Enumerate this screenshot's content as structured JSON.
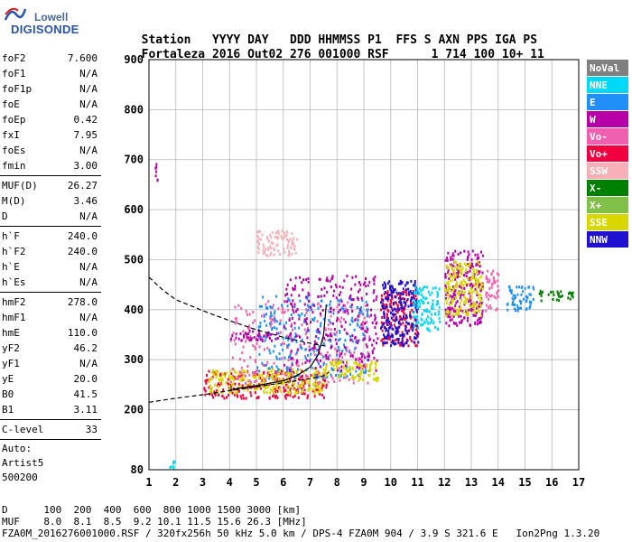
{
  "logo": {
    "line1": "Lowell",
    "line2": "DIGISONDE"
  },
  "header": {
    "columns": [
      "Station",
      "YYYY",
      "DAY",
      "DDD",
      "HHMMSS",
      "P1",
      "FFS",
      "S",
      "AXN",
      "PPS",
      "IGA",
      "PS"
    ],
    "values": [
      "Fortaleza",
      "2016",
      "Out02",
      "276",
      "001000",
      "RSF",
      "",
      "1",
      "714",
      "100",
      "10+",
      "11"
    ]
  },
  "params": [
    {
      "label": "foF2",
      "value": "7.600"
    },
    {
      "label": "foF1",
      "value": "N/A"
    },
    {
      "label": "foF1p",
      "value": "N/A"
    },
    {
      "label": "foE",
      "value": "N/A"
    },
    {
      "label": "foEp",
      "value": "0.42"
    },
    {
      "label": "fxI",
      "value": "7.95"
    },
    {
      "label": "foEs",
      "value": "N/A"
    },
    {
      "label": "fmin",
      "value": "3.00"
    },
    {
      "label": "MUF(D)",
      "value": "26.27"
    },
    {
      "label": "M(D)",
      "value": "3.46"
    },
    {
      "label": "D",
      "value": "N/A"
    },
    {
      "label": "h`F",
      "value": "240.0"
    },
    {
      "label": "h`F2",
      "value": "240.0"
    },
    {
      "label": "h`E",
      "value": "N/A"
    },
    {
      "label": "h`Es",
      "value": "N/A"
    },
    {
      "label": "hmF2",
      "value": "278.0"
    },
    {
      "label": "hmF1",
      "value": "N/A"
    },
    {
      "label": "hmE",
      "value": "110.0"
    },
    {
      "label": "yF2",
      "value": "46.2"
    },
    {
      "label": "yF1",
      "value": "N/A"
    },
    {
      "label": "yE",
      "value": "20.0"
    },
    {
      "label": "B0",
      "value": "41.5"
    },
    {
      "label": "B1",
      "value": "3.11"
    },
    {
      "label": "C-level",
      "value": "33"
    }
  ],
  "auto": {
    "line1": "Auto:",
    "line2": "Artist5",
    "line3": "500200"
  },
  "legend": [
    {
      "label": "NoVal",
      "color": "#808080"
    },
    {
      "label": "NNE",
      "color": "#00d8f8"
    },
    {
      "label": "E",
      "color": "#2090f8"
    },
    {
      "label": "W",
      "color": "#b800a8"
    },
    {
      "label": "Vo-",
      "color": "#f060b0"
    },
    {
      "label": "Vo+",
      "color": "#f00040"
    },
    {
      "label": "SSW",
      "color": "#f8b0b8"
    },
    {
      "label": "X-",
      "color": "#008000"
    },
    {
      "label": "X+",
      "color": "#80c048"
    },
    {
      "label": "SSE",
      "color": "#d8d800"
    },
    {
      "label": "NNW",
      "color": "#2010d0"
    }
  ],
  "chart_data": {
    "type": "scatter",
    "xlim": [
      1,
      17
    ],
    "ylim": [
      80,
      900
    ],
    "x_ticks": [
      1,
      2,
      3,
      4,
      5,
      6,
      7,
      8,
      9,
      10,
      11,
      12,
      13,
      14,
      15,
      16,
      17
    ],
    "y_ticks": [
      80,
      200,
      300,
      400,
      500,
      600,
      700,
      800,
      900
    ],
    "grid": true,
    "legend_position": "right",
    "series": [
      {
        "style": "dashed",
        "x": [
          1.0,
          1.5,
          2.0,
          3.0,
          4.0,
          5.0,
          6.0,
          6.8,
          7.3,
          7.6
        ],
        "y": [
          465,
          440,
          420,
          398,
          378,
          360,
          345,
          335,
          330,
          327
        ]
      },
      {
        "style": "dashed",
        "x": [
          1.0,
          2.0,
          3.0,
          4.0,
          5.0,
          6.0,
          7.0,
          7.5,
          7.7
        ],
        "y": [
          215,
          223,
          230,
          238,
          246,
          254,
          262,
          268,
          275
        ]
      },
      {
        "style": "solid",
        "x": [
          4.0,
          5.0,
          6.0,
          6.5,
          7.0,
          7.3,
          7.5,
          7.6
        ],
        "y": [
          240,
          248,
          258,
          268,
          285,
          310,
          350,
          410
        ]
      }
    ],
    "echo_clusters": [
      {
        "x": [
          3.0,
          7.6
        ],
        "y": [
          225,
          280
        ],
        "color": "#f00040"
      },
      {
        "x": [
          3.2,
          7.6
        ],
        "y": [
          235,
          285
        ],
        "color": "#d8d800"
      },
      {
        "x": [
          4.0,
          9.2
        ],
        "y": [
          255,
          420
        ],
        "color": "#f060b0"
      },
      {
        "x": [
          5.0,
          9.2
        ],
        "y": [
          265,
          430
        ],
        "color": "#2090f8"
      },
      {
        "x": [
          6.0,
          9.5
        ],
        "y": [
          280,
          470
        ],
        "color": "#b800a8"
      },
      {
        "x": [
          7.5,
          9.5
        ],
        "y": [
          260,
          300
        ],
        "color": "#d8d800"
      },
      {
        "x": [
          9.6,
          11.0
        ],
        "y": [
          330,
          440
        ],
        "color": "#f00040"
      },
      {
        "x": [
          9.6,
          11.0
        ],
        "y": [
          330,
          460
        ],
        "color": "#2010d0"
      },
      {
        "x": [
          10.8,
          11.8
        ],
        "y": [
          360,
          450
        ],
        "color": "#00d8f8"
      },
      {
        "x": [
          12.0,
          13.4
        ],
        "y": [
          370,
          520
        ],
        "color": "#b800a8"
      },
      {
        "x": [
          12.0,
          13.4
        ],
        "y": [
          390,
          500
        ],
        "color": "#d8d800"
      },
      {
        "x": [
          13.5,
          14.0
        ],
        "y": [
          400,
          480
        ],
        "color": "#f060b0"
      },
      {
        "x": [
          14.3,
          15.3
        ],
        "y": [
          400,
          450
        ],
        "color": "#2090f8"
      },
      {
        "x": [
          15.5,
          16.8
        ],
        "y": [
          420,
          440
        ],
        "color": "#008000"
      },
      {
        "x": [
          4.0,
          5.8
        ],
        "y": [
          340,
          360
        ],
        "color": "#b800a8"
      },
      {
        "x": [
          5.0,
          6.5
        ],
        "y": [
          510,
          560
        ],
        "color": "#f8b0b8"
      },
      {
        "x": [
          1.2,
          1.3
        ],
        "y": [
          660,
          700
        ],
        "color": "#b800a8"
      },
      {
        "x": [
          1.7,
          2.0
        ],
        "y": [
          85,
          100
        ],
        "color": "#00d8f8"
      }
    ]
  },
  "bottom": {
    "line1": "D      100  200  400  600  800 1000 1500 3000 [km]",
    "line2": "MUF    8.0  8.1  8.5  9.2 10.1 11.5 15.6 26.3 [MHz]",
    "line3": "FZA0M_2016276001000.RSF / 320fx256h 50 kHz 5.0 km / DPS-4 FZA0M 904 / 3.9 S 321.6 E   Ion2Png 1.3.20"
  }
}
